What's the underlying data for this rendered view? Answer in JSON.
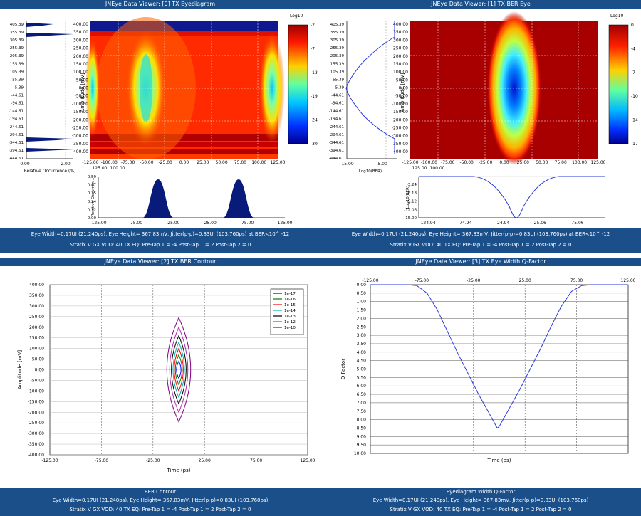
{
  "colors": {
    "titlebar": "#1a4f8a",
    "blueline": "#2a3ad8",
    "hist": "#081a7a"
  },
  "panel0": {
    "title": "JNEye Data Viewer: [0] TX Eyediagram",
    "ylabel": "Amplitude [mV]",
    "yticks": [
      "400.00",
      "350.00",
      "300.00",
      "250.00",
      "200.00",
      "150.00",
      "100.00",
      "50.00",
      "0.00",
      "-50.00",
      "-100.00",
      "-150.00",
      "-200.00",
      "-250.00",
      "-300.00",
      "-350.00",
      "-400.00"
    ],
    "xticks": [
      "-125.00",
      "-100.00",
      "-75.00",
      "-50.00",
      "-25.00",
      "0.00",
      "25.00",
      "50.00",
      "75.00",
      "100.00",
      "125.00"
    ],
    "leftx": [
      "125.00",
      "100.00"
    ],
    "hist_yticks": [
      "405.39",
      "355.39",
      "305.39",
      "255.39",
      "205.39",
      "155.39",
      "105.39",
      "55.39",
      "5.39",
      "-44.61",
      "-94.61",
      "-144.61",
      "-194.61",
      "-244.61",
      "-294.61",
      "-344.61",
      "-394.61",
      "-444.61"
    ],
    "hist_xticks": [
      "0.00",
      "2.00"
    ],
    "hist_xlabel": "Relative Occurrence (%)",
    "colorbar_label": "Log10",
    "colorbar_ticks": [
      "-2",
      "-7",
      "-13",
      "-19",
      "-24",
      "-30"
    ],
    "bottom_ylabel": "Relative Occurren...",
    "bottom_yticks": [
      "0.59",
      "0.47",
      "0.35",
      "0.24",
      "0.12",
      "0.00"
    ],
    "bottom_xticks": [
      "-125.00",
      "-75.00",
      "-25.00",
      "25.00",
      "75.00",
      "125.00"
    ],
    "footer1": "Eye Width=0.17UI (21.240ps), Eye Height= 367.83mV, Jitter(p-p)=0.83UI (103.760ps) at BER<10^ -12",
    "footer2": "Stratix V GX VOD: 40 TX EQ: Pre-Tap 1 = -4 Post-Tap 1 = 2 Post-Tap 2 = 0"
  },
  "panel1": {
    "title": "JNEye Data Viewer: [1] TX BER Eye",
    "ylabel": "Amplitude [mV]",
    "yticks": [
      "400.00",
      "350.00",
      "300.00",
      "250.00",
      "200.00",
      "150.00",
      "100.00",
      "50.00",
      "0.00",
      "-50.00",
      "-100.00",
      "-150.00",
      "-200.00",
      "-250.00",
      "-300.00",
      "-350.00",
      "-400.00"
    ],
    "xticks": [
      "-125.00",
      "-100.00",
      "-75.00",
      "-50.00",
      "-25.00",
      "0.00",
      "25.00",
      "50.00",
      "75.00",
      "100.00",
      "125.00"
    ],
    "leftx": [
      "125.00",
      "100.00"
    ],
    "ber_yticks": [
      "405.39",
      "355.39",
      "305.39",
      "255.39",
      "205.39",
      "155.39",
      "105.39",
      "55.39",
      "5.39",
      "-44.61",
      "-94.61",
      "-144.61",
      "-194.61",
      "-244.61",
      "-294.61",
      "-344.61",
      "-394.61",
      "-444.61"
    ],
    "ber_xticks": [
      "-15.00",
      "-5.00"
    ],
    "ber_xlabel": "Log10(BER)",
    "colorbar_label": "Log10",
    "colorbar_ticks": [
      "0",
      "-4",
      "-7",
      "-10",
      "-14",
      "-17"
    ],
    "bottom_ylabel": "Log10(BER)",
    "bottom_yticks": [
      "-3.24",
      "-6.18",
      "-9.12",
      "-12.06",
      "-15.00"
    ],
    "bottom_xticks": [
      "-124.94",
      "-74.94",
      "-24.94",
      "25.06",
      "75.06"
    ],
    "footer1": "Eye Width=0.17UI (21.240ps), Eye Height= 367.83mV, Jitter(p-p)=0.83UI (103.760ps) at BER<10^ -12",
    "footer2": "Stratix V GX VOD: 40 TX EQ: Pre-Tap 1 = -4 Post-Tap 1 = 2 Post-Tap 2 = 0"
  },
  "panel2": {
    "title": "JNEye Data Viewer: [2] TX BER Contour",
    "footer_title": "BER Contour",
    "footer1": "Eye Width=0.17UI (21.240ps), Eye Height= 367.83mV, Jitter(p-p)=0.83UI (103.760ps)",
    "footer2": "Stratix V GX VOD: 40 TX EQ: Pre-Tap 1 = -4 Post-Tap 1 = 2 Post-Tap 2 = 0"
  },
  "panel3": {
    "title": "JNEye Data Viewer: [3] TX Eye Width Q-Factor",
    "footer_title": "Eyediagram Width Q-Factor",
    "footer1": "Eye Width=0.17UI (21.240ps), Eye Height= 367.83mV, Jitter(p-p)=0.83UI (103.760ps)",
    "footer2": "Stratix V GX VOD: 40 TX EQ: Pre-Tap 1 = -4 Post-Tap 1 = 2 Post-Tap 2 = 0"
  },
  "chart_data": [
    {
      "type": "line",
      "title": "JNEye Data Viewer: [2] TX BER Contour",
      "xlabel": "Time (ps)",
      "ylabel": "Amplitude [mV]",
      "xlim": [
        -125,
        125
      ],
      "ylim": [
        -400,
        400
      ],
      "x_ticks": [
        "-125.00",
        "-75.00",
        "-25.00",
        "25.00",
        "75.00",
        "125.00"
      ],
      "y_ticks": [
        "400.00",
        "350.00",
        "300.00",
        "250.00",
        "200.00",
        "150.00",
        "100.00",
        "50.00",
        "0.00",
        "-50.00",
        "-100.00",
        "-150.00",
        "-200.00",
        "-250.00",
        "-300.00",
        "-350.00",
        "-400.00"
      ],
      "legend_position": "top-right",
      "series": [
        {
          "name": "1e-17",
          "color": "#0000ff",
          "half_width": 4,
          "half_height": 40
        },
        {
          "name": "1e-16",
          "color": "#008000",
          "half_width": 6,
          "half_height": 70
        },
        {
          "name": "1e-15",
          "color": "#ff0000",
          "half_width": 8,
          "half_height": 100
        },
        {
          "name": "1e-14",
          "color": "#00b4b4",
          "half_width": 10,
          "half_height": 130
        },
        {
          "name": "1e-13",
          "color": "#000000",
          "half_width": 13,
          "half_height": 160
        },
        {
          "name": "1e-12",
          "color": "#b030b0",
          "half_width": 16,
          "half_height": 200
        },
        {
          "name": "1e-10",
          "color": "#800080",
          "half_width": 21,
          "half_height": 245
        }
      ]
    },
    {
      "type": "line",
      "title": "JNEye Data Viewer: [3] TX Eye Width Q-Factor",
      "xlabel": "Time (ps)",
      "ylabel": "Q Factor",
      "xlim": [
        -125,
        125
      ],
      "ylim": [
        0,
        10
      ],
      "x_ticks": [
        "-125.00",
        "-75.00",
        "-25.00",
        "25.00",
        "75.00",
        "125.00"
      ],
      "y_ticks": [
        "0.00",
        "0.50",
        "1.00",
        "1.50",
        "2.00",
        "2.50",
        "3.00",
        "3.50",
        "4.00",
        "4.50",
        "5.00",
        "5.50",
        "6.00",
        "6.50",
        "7.00",
        "7.50",
        "8.00",
        "8.50",
        "9.00",
        "9.50",
        "10.00"
      ],
      "series": [
        {
          "name": "Q-Factor",
          "color": "#2a3ad8",
          "x": [
            -125,
            -90,
            -80,
            -70,
            -60,
            -50,
            -40,
            -30,
            -20,
            -10,
            -2,
            0,
            10,
            20,
            30,
            40,
            50,
            60,
            70,
            80,
            90,
            125
          ],
          "y": [
            0,
            0,
            0.05,
            0.5,
            1.5,
            2.8,
            4.1,
            5.3,
            6.5,
            7.6,
            8.5,
            8.4,
            7.3,
            6.2,
            5.0,
            3.8,
            2.5,
            1.3,
            0.4,
            0.05,
            0,
            0
          ]
        }
      ]
    }
  ]
}
